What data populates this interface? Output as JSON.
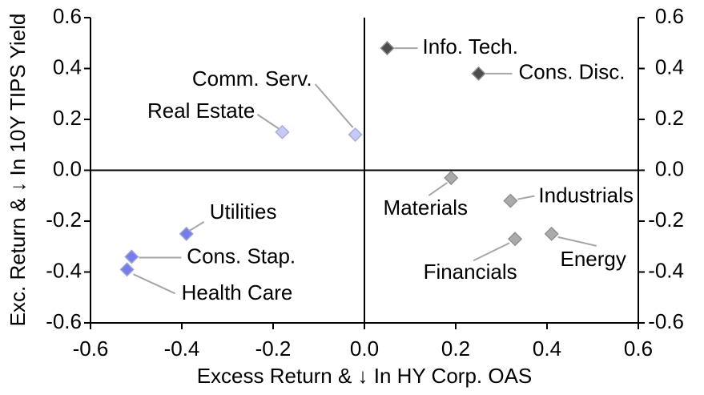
{
  "chart_data": {
    "type": "scatter",
    "title": "",
    "xlabel": "Excess Return & ↓ In HY Corp. OAS",
    "ylabel": "Exc. Return & ↓ In 10Y TIPS Yield",
    "xlim": [
      -0.6,
      0.6
    ],
    "ylim": [
      -0.6,
      0.6
    ],
    "xticks": [
      -0.6,
      -0.4,
      -0.2,
      0.0,
      0.2,
      0.4,
      0.6
    ],
    "yticks": [
      -0.6,
      -0.4,
      -0.2,
      0.0,
      0.2,
      0.4,
      0.6
    ],
    "y_axis_mirrored_right": true,
    "grid": false,
    "quadrant_lines_at_zero": true,
    "axis_color": "#000000",
    "leader_line_color": "#a6a6a6",
    "marker_shape": "diamond",
    "series": [
      {
        "name": "dark-gray-sectors",
        "fill": "#4d4d4d",
        "stroke": "#8c8c8c",
        "points": [
          {
            "label": "Info. Tech.",
            "x": 0.05,
            "y": 0.48,
            "label_dx": 44,
            "label_dy": 0,
            "label_anchor": "start",
            "leader": [
              9,
              0,
              38,
              0
            ]
          },
          {
            "label": "Cons. Disc.",
            "x": 0.25,
            "y": 0.38,
            "label_dx": 50,
            "label_dy": 0,
            "label_anchor": "start",
            "leader": [
              9,
              0,
              42,
              0
            ]
          }
        ]
      },
      {
        "name": "light-periwinkle-sectors",
        "fill": "#c7caf8",
        "stroke": "#a9aede",
        "points": [
          {
            "label": "Comm. Serv.",
            "x": -0.02,
            "y": 0.14,
            "label_dx": -54,
            "label_dy": -68,
            "label_anchor": "end",
            "leader": [
              -50,
              -63,
              -3,
              -9
            ]
          },
          {
            "label": "Real Estate",
            "x": -0.18,
            "y": 0.15,
            "label_dx": -34,
            "label_dy": -25,
            "label_anchor": "end",
            "leader": [
              -31,
              -22,
              -4,
              -4
            ]
          }
        ]
      },
      {
        "name": "periwinkle-sectors",
        "fill": "#767bee",
        "stroke": "#9aa3d9",
        "points": [
          {
            "label": "Utilities",
            "x": -0.39,
            "y": -0.25,
            "label_dx": 29,
            "label_dy": -26,
            "label_anchor": "start",
            "leader": [
              22,
              -15,
              4,
              -4
            ]
          },
          {
            "label": "Cons. Stap.",
            "x": -0.51,
            "y": -0.34,
            "label_dx": 69,
            "label_dy": 1,
            "label_anchor": "start",
            "leader": [
              9,
              1,
              62,
              1
            ]
          },
          {
            "label": "Health Care",
            "x": -0.52,
            "y": -0.39,
            "label_dx": 68,
            "label_dy": 31,
            "label_anchor": "start",
            "leader": [
              8,
              6,
              60,
              30
            ]
          }
        ]
      },
      {
        "name": "gray-sectors",
        "fill": "#ababab",
        "stroke": "#8f8f8f",
        "points": [
          {
            "label": "Materials",
            "x": 0.19,
            "y": -0.03,
            "label_dx": -32,
            "label_dy": 39,
            "label_anchor": "middle",
            "leader": [
              -28,
              22,
              -5,
              6
            ]
          },
          {
            "label": "Industrials",
            "x": 0.32,
            "y": -0.12,
            "label_dx": 35,
            "label_dy": -5,
            "label_anchor": "start",
            "leader": [
              9,
              -2,
              30,
              -6
            ]
          },
          {
            "label": "Financials",
            "x": 0.33,
            "y": -0.27,
            "label_dx": -56,
            "label_dy": 43,
            "label_anchor": "middle",
            "leader": [
              -52,
              27,
              -7,
              5
            ]
          },
          {
            "label": "Energy",
            "x": 0.41,
            "y": -0.25,
            "label_dx": 52,
            "label_dy": 33,
            "label_anchor": "middle",
            "leader": [
              8,
              4,
              56,
              15
            ]
          }
        ]
      }
    ]
  }
}
